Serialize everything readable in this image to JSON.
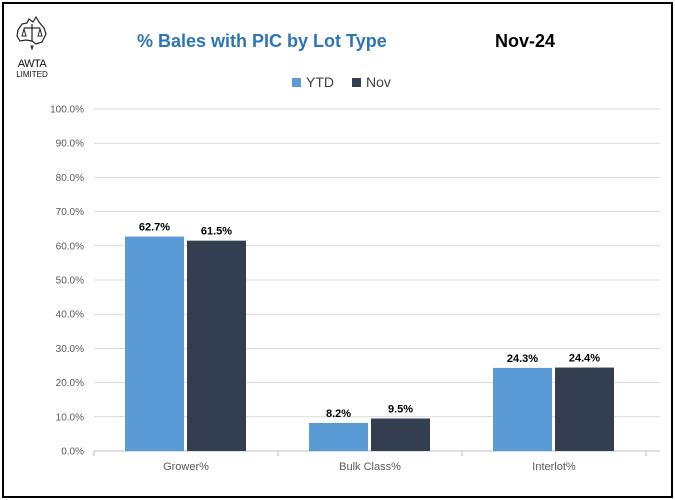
{
  "logo": {
    "text": "AWTA",
    "subtext": "LIMITED"
  },
  "chart_data": {
    "type": "bar",
    "title": "% Bales with PIC by Lot Type",
    "subtitle": "Nov-24",
    "categories": [
      "Grower%",
      "Bulk Class%",
      "Interlot%"
    ],
    "series": [
      {
        "name": "YTD",
        "values": [
          62.7,
          8.2,
          24.3
        ],
        "labels": [
          "62.7%",
          "8.2%",
          "24.3%"
        ],
        "color": "#5b9bd5"
      },
      {
        "name": "Nov",
        "values": [
          61.5,
          9.5,
          24.4
        ],
        "labels": [
          "61.5%",
          "9.5%",
          "24.4%"
        ],
        "color": "#333f50"
      }
    ],
    "ylim": [
      0,
      100
    ],
    "yticks": [
      "0.0%",
      "10.0%",
      "20.0%",
      "30.0%",
      "40.0%",
      "50.0%",
      "60.0%",
      "70.0%",
      "80.0%",
      "90.0%",
      "100.0%"
    ],
    "grid": true,
    "legend": "top-center",
    "xlabel": "",
    "ylabel": ""
  }
}
